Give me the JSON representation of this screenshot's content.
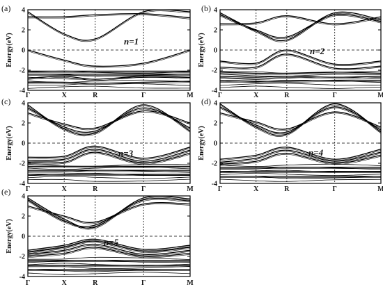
{
  "chart_data": [
    {
      "type": "line",
      "panel": "(a)",
      "annotation": "n=1",
      "ylabel": "Energy(eV)",
      "ylim": [
        -4,
        4
      ],
      "yticks": [
        "4",
        "2",
        "0",
        "-2",
        "-4"
      ],
      "kpath": [
        "Γ",
        "X",
        "R",
        "Γ",
        "M"
      ],
      "fermi_level": 0,
      "valence_top": 0.0,
      "conduction_min": 1.1,
      "series": [
        {
          "values": [
            0.0,
            -1.0,
            -1.6,
            -1.3,
            0.0
          ]
        },
        {
          "values": [
            3.8,
            1.6,
            1.1,
            3.8,
            3.8
          ]
        },
        {
          "values": [
            3.3,
            3.3,
            3.5,
            3.6,
            3.2
          ]
        },
        {
          "values": [
            -2.1,
            -2.1,
            -2.1,
            -2.1,
            -2.1
          ]
        },
        {
          "values": [
            -2.4,
            -2.4,
            -2.4,
            -2.4,
            -2.4
          ]
        },
        {
          "values": [
            -2.8,
            -2.6,
            -2.9,
            -2.6,
            -2.7
          ]
        },
        {
          "values": [
            -3.2,
            -3.2,
            -3.3,
            -3.2,
            -3.1
          ]
        }
      ]
    },
    {
      "type": "line",
      "panel": "(b)",
      "annotation": "n=2",
      "ylabel": "Energy(eV)",
      "ylim": [
        -4,
        4
      ],
      "yticks": [
        "4",
        "2",
        "0",
        "-2",
        "-4"
      ],
      "kpath": [
        "Γ",
        "X",
        "R",
        "Γ",
        "M"
      ],
      "fermi_level": 0,
      "valence_top": 0.0,
      "conduction_min": 1.0,
      "series": [
        {
          "values": [
            -1.1,
            -1.3,
            0.0,
            -1.4,
            -1.1
          ]
        },
        {
          "values": [
            -1.7,
            -1.7,
            -0.4,
            -1.8,
            -1.6
          ]
        },
        {
          "values": [
            3.7,
            1.9,
            1.0,
            3.7,
            3.0
          ]
        },
        {
          "values": [
            3.5,
            2.0,
            1.3,
            3.5,
            2.8
          ]
        },
        {
          "values": [
            2.6,
            2.7,
            3.4,
            2.6,
            3.3
          ]
        },
        {
          "values": [
            -2.2,
            -2.3,
            -2.3,
            -2.2,
            -2.3
          ]
        },
        {
          "values": [
            -2.6,
            -2.7,
            -2.6,
            -2.7,
            -2.6
          ]
        },
        {
          "values": [
            -3.0,
            -3.1,
            -3.1,
            -3.0,
            -3.0
          ]
        }
      ]
    },
    {
      "type": "line",
      "panel": "(c)",
      "annotation": "n=3",
      "ylabel": "Energy(eV)",
      "ylim": [
        -4,
        4
      ],
      "yticks": [
        "4",
        "2",
        "0",
        "-2",
        "-4"
      ],
      "kpath": [
        "Γ",
        "X",
        "R",
        "Γ",
        "M"
      ],
      "fermi_level": 0,
      "valence_top": -0.3,
      "conduction_min": 1.0,
      "series": [
        {
          "values": [
            -1.4,
            -1.3,
            -0.3,
            -1.5,
            -0.4
          ]
        },
        {
          "values": [
            -1.7,
            -1.6,
            -0.6,
            -1.8,
            -0.7
          ]
        },
        {
          "values": [
            -1.9,
            -1.9,
            -0.9,
            -2.0,
            -1.0
          ]
        },
        {
          "values": [
            3.8,
            1.4,
            1.0,
            3.8,
            1.2
          ]
        },
        {
          "values": [
            3.5,
            1.6,
            1.2,
            3.5,
            1.5
          ]
        },
        {
          "values": [
            3.0,
            1.9,
            1.5,
            3.2,
            2.0
          ]
        },
        {
          "values": [
            -2.3,
            -2.3,
            -2.3,
            -2.3,
            -2.3
          ]
        },
        {
          "values": [
            -2.7,
            -2.7,
            -2.7,
            -2.7,
            -2.7
          ]
        },
        {
          "values": [
            -3.1,
            -3.1,
            -3.1,
            -3.1,
            -3.1
          ]
        }
      ]
    },
    {
      "type": "line",
      "panel": "(d)",
      "annotation": "n=4",
      "ylabel": "Energy(eV)",
      "ylim": [
        -4,
        4
      ],
      "yticks": [
        "4",
        "2",
        "0",
        "-2",
        "-4"
      ],
      "kpath": [
        "Γ",
        "X",
        "R",
        "Γ",
        "M"
      ],
      "fermi_level": 0,
      "valence_top": -0.4,
      "conduction_min": 0.9,
      "series": [
        {
          "values": [
            -1.6,
            -1.2,
            -0.4,
            -1.6,
            -0.6
          ]
        },
        {
          "values": [
            -1.9,
            -1.5,
            -0.7,
            -1.8,
            -0.9
          ]
        },
        {
          "values": [
            -2.1,
            -1.8,
            -1.0,
            -2.0,
            -1.2
          ]
        },
        {
          "values": [
            3.9,
            1.6,
            0.9,
            3.9,
            1.1
          ]
        },
        {
          "values": [
            3.6,
            1.8,
            1.1,
            3.6,
            1.3
          ]
        },
        {
          "values": [
            3.0,
            2.1,
            1.4,
            3.1,
            1.6
          ]
        },
        {
          "values": [
            -2.4,
            -2.4,
            -2.4,
            -2.4,
            -2.4
          ]
        },
        {
          "values": [
            -2.8,
            -2.8,
            -2.8,
            -2.8,
            -2.8
          ]
        },
        {
          "values": [
            -3.3,
            -3.3,
            -3.3,
            -3.3,
            -3.3
          ]
        }
      ]
    },
    {
      "type": "line",
      "panel": "(e)",
      "annotation": "n=5",
      "ylabel": "Energy(eV)",
      "ylim": [
        -4,
        4
      ],
      "yticks": [
        "4",
        "2",
        "0",
        "-2",
        "-4"
      ],
      "kpath": [
        "Γ",
        "X",
        "R",
        "Γ",
        "M"
      ],
      "fermi_level": 0,
      "valence_top": -0.3,
      "conduction_min": 0.9,
      "series": [
        {
          "values": [
            -1.4,
            -0.9,
            -0.3,
            -1.3,
            -0.9
          ]
        },
        {
          "values": [
            -1.6,
            -1.1,
            -0.5,
            -1.5,
            -1.1
          ]
        },
        {
          "values": [
            -1.8,
            -1.4,
            -0.8,
            -1.8,
            -1.4
          ]
        },
        {
          "values": [
            -2.0,
            -1.7,
            -1.1,
            -2.0,
            -1.7
          ]
        },
        {
          "values": [
            3.8,
            1.7,
            0.9,
            3.8,
            3.7
          ]
        },
        {
          "values": [
            3.6,
            1.5,
            1.1,
            3.6,
            3.5
          ]
        },
        {
          "values": [
            3.0,
            2.0,
            1.4,
            3.2,
            3.2
          ]
        },
        {
          "values": [
            -2.4,
            -2.4,
            -2.4,
            -2.4,
            -2.4
          ]
        },
        {
          "values": [
            -2.9,
            -2.9,
            -2.9,
            -2.9,
            -2.9
          ]
        },
        {
          "values": [
            -3.3,
            -3.3,
            -3.3,
            -3.3,
            -3.3
          ]
        }
      ]
    }
  ]
}
